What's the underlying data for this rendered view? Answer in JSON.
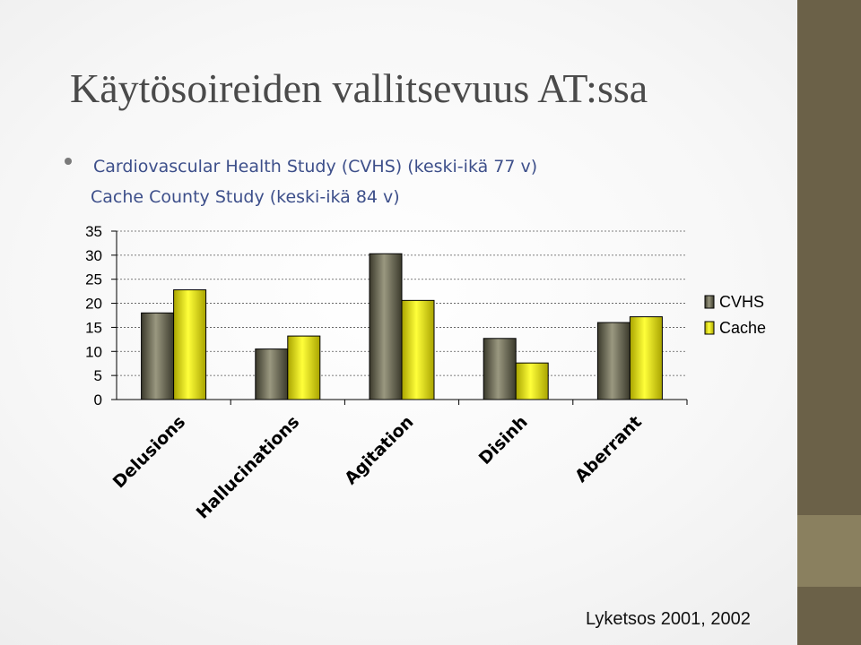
{
  "slide": {
    "title": "Käytösoireiden vallitsevuus AT:ssa",
    "subtitle_1": "Cardiovascular Health Study (CVHS) (keski-ikä 77 v)",
    "subtitle_2": "Cache County Study (keski-ikä 84 v)",
    "source": "Lyketsos 2001, 2002"
  },
  "colors": {
    "accent_band": "#6b6148",
    "subtitle_text": "#3d4f8a",
    "cvhs_bar": "#6e6c58",
    "cache_bar": "#f0ec18"
  },
  "chart_data": {
    "type": "bar",
    "title": "",
    "xlabel": "",
    "ylabel": "",
    "ylim": [
      0,
      35
    ],
    "yticks": [
      0,
      5,
      10,
      15,
      20,
      25,
      30,
      35
    ],
    "grid": true,
    "legend_position": "right",
    "categories": [
      "Delusions",
      "Hallucinations",
      "Agitation",
      "Disinh",
      "Aberrant"
    ],
    "series": [
      {
        "name": "CVHS",
        "values": [
          18,
          10.5,
          30.3,
          12.7,
          16
        ]
      },
      {
        "name": "Cache",
        "values": [
          22.8,
          13.2,
          20.6,
          7.6,
          17.2
        ]
      }
    ]
  }
}
